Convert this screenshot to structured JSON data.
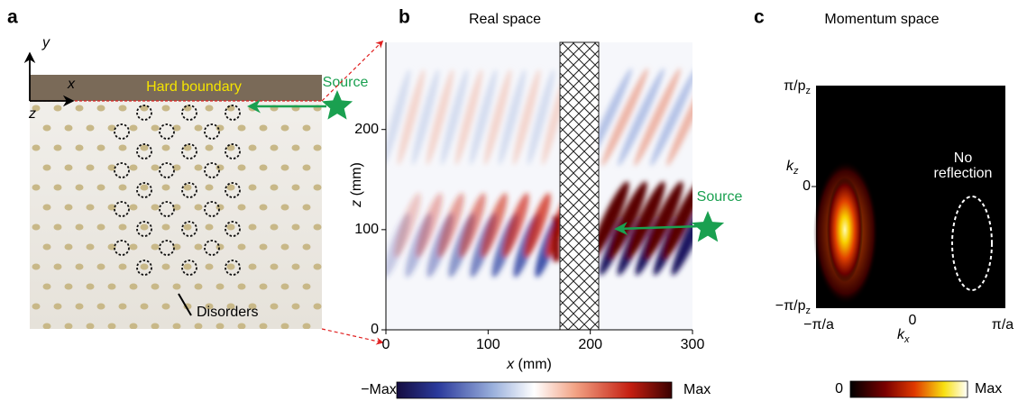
{
  "panel_a": {
    "label": "a",
    "axis_labels": {
      "x": "x",
      "y": "y",
      "z": "z"
    },
    "boundary": "Hard boundary",
    "source": "Source",
    "annotation": "Disorders"
  },
  "panel_b": {
    "label": "b",
    "title": "Real space",
    "x_label": {
      "symbol": "x",
      "unit": " (mm)"
    },
    "y_label": {
      "symbol": "z",
      "unit": " (mm)"
    },
    "xlim": [
      0,
      300
    ],
    "xticks": [
      0,
      100,
      200,
      300
    ],
    "ylim": [
      0,
      287
    ],
    "yticks": [
      0,
      100,
      200
    ],
    "source": "Source",
    "colorbar": {
      "min": "−Max",
      "max": "Max"
    }
  },
  "panel_c": {
    "label": "c",
    "title": "Momentum space",
    "y_ticks": [
      {
        "label": "π/p",
        "sub": "z"
      },
      {
        "label": "0"
      },
      {
        "label": "−π/p",
        "sub": "z"
      }
    ],
    "y_label": {
      "symbol": "k",
      "sub": "z"
    },
    "x_ticks": [
      "−π/a",
      "0",
      "π/a"
    ],
    "x_label": {
      "symbol": "k",
      "sub": "x"
    },
    "annotation": [
      "No",
      "reflection"
    ],
    "colorbar": {
      "min": "0",
      "max": "Max"
    }
  }
}
